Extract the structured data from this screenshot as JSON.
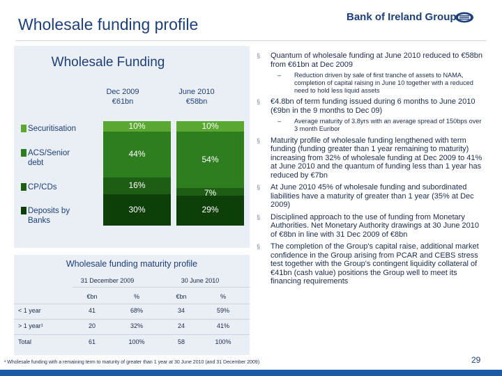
{
  "header": {
    "title": "Wholesale funding profile",
    "logo_text": "Bank of Ireland Group"
  },
  "chart": {
    "title": "Wholesale Funding",
    "columns": [
      {
        "label_line1": "Dec 2009",
        "label_line2": "€61bn"
      },
      {
        "label_line1": "June 2010",
        "label_line2": "€58bn"
      }
    ],
    "legend": [
      {
        "label": "Securitisation",
        "color": "#5aa832"
      },
      {
        "label": "ACS/Senior debt",
        "color": "#2e7d1e"
      },
      {
        "label": "CP/CDs",
        "color": "#1e5e14"
      },
      {
        "label": "Deposits by Banks",
        "color": "#0e3f09"
      }
    ]
  },
  "chart_data": {
    "type": "bar",
    "stacked": true,
    "normalized_percent": true,
    "categories": [
      "Dec 2009 €61bn",
      "June 2010 €58bn"
    ],
    "series": [
      {
        "name": "Securitisation",
        "values": [
          10,
          10
        ],
        "labels": [
          "10%",
          "10%"
        ]
      },
      {
        "name": "ACS/Senior debt",
        "values": [
          44,
          54
        ],
        "labels": [
          "44%",
          "54%"
        ]
      },
      {
        "name": "CP/CDs",
        "values": [
          16,
          7
        ],
        "labels": [
          "16%",
          "7%"
        ]
      },
      {
        "name": "Deposits by Banks",
        "values": [
          30,
          29
        ],
        "labels": [
          "30%",
          "29%"
        ]
      }
    ],
    "title": "Wholesale Funding",
    "ylim": [
      0,
      100
    ],
    "legend_position": "left"
  },
  "table": {
    "title": "Wholesale funding maturity profile",
    "group_headers": [
      "31 December 2009",
      "30 June 2010"
    ],
    "sub_headers": [
      "€bn",
      "%",
      "€bn",
      "%"
    ],
    "rows": [
      {
        "label": "< 1 year",
        "values": [
          "41",
          "68%",
          "34",
          "59%"
        ]
      },
      {
        "label": "> 1 year¹",
        "values": [
          "20",
          "32%",
          "24",
          "41%"
        ]
      },
      {
        "label": "Total",
        "values": [
          "61",
          "100%",
          "58",
          "100%"
        ]
      }
    ]
  },
  "bullets": [
    {
      "text": "Quantum of wholesale funding at June 2010 reduced to €58bn from €61bn at Dec 2009",
      "sub": [
        "Reduction driven by sale of first tranche of assets to NAMA, completion of capital raising in June 10 together with a reduced need to hold less liquid assets"
      ]
    },
    {
      "text": "€4.8bn of term funding issued during 6 months to June 2010 (€9bn in the 9 months to Dec 09)",
      "sub": [
        "Average maturity of 3.8yrs with an average spread of 150bps over 3 month Euribor"
      ]
    },
    {
      "text": "Maturity profile of wholesale funding lengthened with term funding (funding greater than 1 year remaining to maturity) increasing from 32% of wholesale funding at Dec 2009 to 41% at June 2010 and the quantum of funding less than 1 year has reduced by €7bn",
      "sub": []
    },
    {
      "text": "At June 2010 45% of wholesale funding and subordinated liabilities have a maturity of greater than 1 year (35% at Dec 2009)",
      "sub": []
    },
    {
      "text": "Disciplined approach to the use of funding from Monetary Authorities.  Net Monetary Authority drawings at 30 June 2010 of €8bn in line with 31 Dec 2009 of €8bn",
      "sub": []
    },
    {
      "text": "The completion of the Group's capital raise, additional market confidence in the Group arising from PCAR and CEBS stress test together with the Group's contingent liquidity collateral of €41bn (cash value) positions the Group well to meet its financing requirements",
      "sub": []
    }
  ],
  "bullet_marker": "§",
  "sub_marker": "–",
  "footnote": "¹ Wholesale funding with a remaining term to maturity of greater than 1 year at 30 June 2010 (and 31 December 2009)",
  "page_number": "29"
}
